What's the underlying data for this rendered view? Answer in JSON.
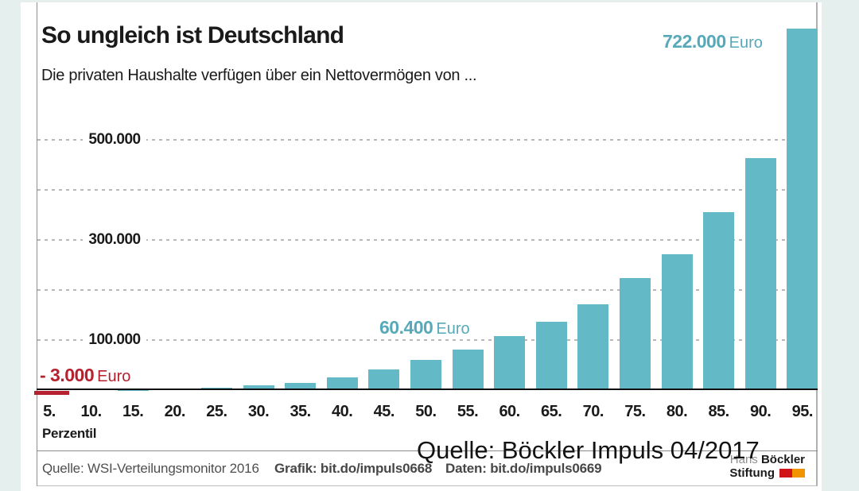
{
  "page": {
    "background_color": "#e5efee",
    "card_color": "#ffffff"
  },
  "chart_data": {
    "type": "bar",
    "title": "So ungleich ist Deutschland",
    "subtitle": "Die privaten Haushalte verfügen über ein Nettovermögen von ...",
    "xlabel": "Perzentil",
    "ylabel": "Euro",
    "categories": [
      "5.",
      "10.",
      "15.",
      "20.",
      "25.",
      "30.",
      "35.",
      "40.",
      "45.",
      "50.",
      "55.",
      "60.",
      "65.",
      "70.",
      "75.",
      "80.",
      "85.",
      "90.",
      "95."
    ],
    "values": [
      -3000,
      0,
      300,
      3600,
      5200,
      9000,
      15000,
      25500,
      41500,
      60400,
      81500,
      108500,
      136000,
      172000,
      223500,
      271500,
      355000,
      464000,
      722000
    ],
    "ylim": [
      -10000,
      730000
    ],
    "grid": "horizontal-dashed",
    "legend": "none",
    "bar_color": "#64b9c7",
    "negative_bar_color": "#b5212f",
    "yticks": [
      {
        "value": 100000,
        "label": "100.000"
      },
      {
        "value": 200000,
        "label": ""
      },
      {
        "value": 300000,
        "label": "300.000"
      },
      {
        "value": 400000,
        "label": ""
      },
      {
        "value": 500000,
        "label": "500.000"
      }
    ],
    "annotations": [
      {
        "value": "722.000",
        "unit": "Euro",
        "color": "#57a9ba",
        "target": "95. Perzentil"
      },
      {
        "value": "60.400",
        "unit": "Euro",
        "color": "#57a9ba",
        "target": "50. Perzentil"
      },
      {
        "value": "- 3.000",
        "unit": "Euro",
        "color": "#b5212f",
        "target": "5. Perzentil"
      }
    ]
  },
  "footer": {
    "source": "Quelle: WSI-Verteilungsmonitor 2016",
    "grafik": "Grafik: bit.do/impuls0668",
    "daten": "Daten: bit.do/impuls0669"
  },
  "watermark": {
    "text": "Quelle: Böckler Impuls 04/2017"
  },
  "logo": {
    "line1_light": "Hans",
    "line1_bold": "Böckler",
    "line2": "Stiftung",
    "square1_color": "#d01317",
    "square2_color": "#f29400"
  }
}
